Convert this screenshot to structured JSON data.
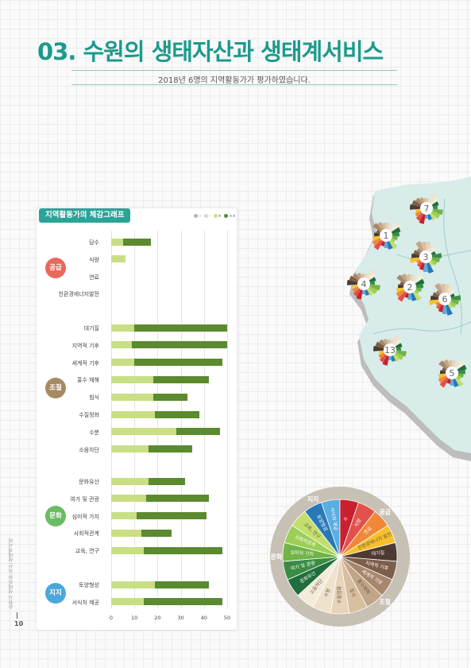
{
  "page": {
    "title": "03. 수원의 생태자산과 생태계서비스",
    "subtitle": "2018년 6명의 지역활동가가 평가하였습니다.",
    "page_number": "10",
    "side_note": "순천시 생태자원 자산 생태계서비스 가치평가"
  },
  "chart_data": {
    "type": "bar",
    "title": "지역활동가의 체감그래프",
    "legend": [
      {
        "label": "--",
        "color": "#b7b7a3"
      },
      {
        "label": "-",
        "color": "#d6d6d6"
      },
      {
        "label": "+",
        "color": "#c8df84"
      },
      {
        "label": "++",
        "color": "#5b8a2f"
      }
    ],
    "xlim": [
      0,
      50
    ],
    "xticks": [
      "0",
      "10",
      "20",
      "30",
      "40",
      "50"
    ],
    "series_names": [
      "+",
      "++"
    ],
    "groups": [
      {
        "name": "공급",
        "color": "#e8685a",
        "items": [
          {
            "label": "담수",
            "plus": 5,
            "plusplus": 12
          },
          {
            "label": "식량",
            "plus": 6,
            "plusplus": 0
          },
          {
            "label": "연료",
            "plus": 0,
            "plusplus": 0
          },
          {
            "label": "친환경에너지발전",
            "plus": 0,
            "plusplus": 0
          }
        ]
      },
      {
        "name": "조절",
        "color": "#a68a63",
        "items": [
          {
            "label": "대기질",
            "plus": 10,
            "plusplus": 40
          },
          {
            "label": "지역적 기후",
            "plus": 9,
            "plusplus": 41
          },
          {
            "label": "세계적 기후",
            "plus": 10,
            "plusplus": 38
          },
          {
            "label": "홍수 재해",
            "plus": 18,
            "plusplus": 24
          },
          {
            "label": "침식",
            "plus": 18,
            "plusplus": 15
          },
          {
            "label": "수질정화",
            "plus": 19,
            "plusplus": 19
          },
          {
            "label": "수분",
            "plus": 28,
            "plusplus": 19
          },
          {
            "label": "소음차단",
            "plus": 16,
            "plusplus": 19
          }
        ]
      },
      {
        "name": "문화",
        "color": "#6cbb63",
        "items": [
          {
            "label": "문화유산",
            "plus": 16,
            "plusplus": 16
          },
          {
            "label": "여가 및 관광",
            "plus": 15,
            "plusplus": 27
          },
          {
            "label": "심미적 가치",
            "plus": 11,
            "plusplus": 30
          },
          {
            "label": "사회적관계",
            "plus": 13,
            "plusplus": 13
          },
          {
            "label": "교육, 연구",
            "plus": 14,
            "plusplus": 34
          }
        ]
      },
      {
        "name": "지지",
        "color": "#4aa7db",
        "items": [
          {
            "label": "토양형성",
            "plus": 19,
            "plusplus": 23
          },
          {
            "label": "서식처 제공",
            "plus": 14,
            "plusplus": 34
          }
        ]
      }
    ]
  },
  "map": {
    "site_markers": [
      "7",
      "1",
      "3",
      "4",
      "2",
      "6",
      "13",
      "5"
    ]
  },
  "wheel": {
    "categories": [
      {
        "name": "지지",
        "color": "#2d7fbd"
      },
      {
        "name": "공급",
        "color": "#e85b49"
      },
      {
        "name": "조절",
        "color": "#8a6a49"
      },
      {
        "name": "문화",
        "color": "#6aa840"
      }
    ],
    "segments": [
      {
        "label": "수질정화",
        "color": "#e7d3b8"
      },
      {
        "label": "수분",
        "color": "#efe2cc"
      },
      {
        "label": "소음차단",
        "color": "#f3ecdb"
      },
      {
        "label": "문화유산",
        "color": "#1f6e3b"
      },
      {
        "label": "여가 및 관광",
        "color": "#3a8c45"
      },
      {
        "label": "심미적 가치",
        "color": "#71b447"
      },
      {
        "label": "사회적관계",
        "color": "#9ccf55"
      },
      {
        "label": "교육, 연구",
        "color": "#c2df6d"
      },
      {
        "label": "토양형성",
        "color": "#2878b8"
      },
      {
        "label": "서식처 제공",
        "color": "#5aaee0"
      },
      {
        "label": "수",
        "color": "#c8202f"
      },
      {
        "label": "식량",
        "color": "#e2514b"
      },
      {
        "label": "연료",
        "color": "#f08838"
      },
      {
        "label": "친환경에너지 발전",
        "color": "#f6c12a"
      },
      {
        "label": "대기질",
        "color": "#4d3a30"
      },
      {
        "label": "지역적 기후",
        "color": "#7b5f4b"
      },
      {
        "label": "세계적 기후",
        "color": "#a7876c"
      },
      {
        "label": "홍수재해",
        "color": "#c2a586"
      },
      {
        "label": "침식",
        "color": "#d8bf9f"
      }
    ]
  }
}
